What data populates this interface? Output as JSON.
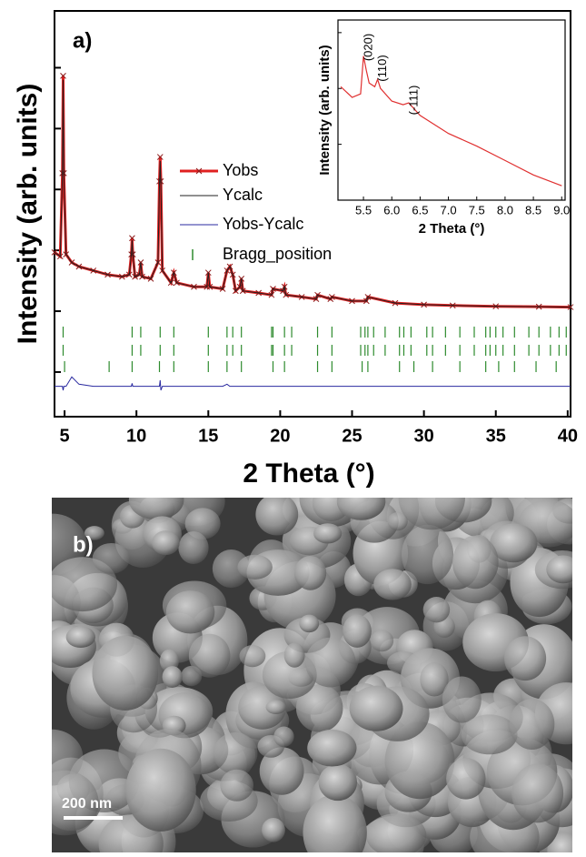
{
  "panel_a_label": "a)",
  "panel_b": {
    "label": "b)",
    "scale_bar": "200 nm"
  },
  "chart_data": [
    {
      "type": "line",
      "xlabel": "2 Theta (°)",
      "ylabel": "Intensity (arb. units)",
      "xlim": [
        4.3,
        40.2
      ],
      "ylim": [
        0,
        100
      ],
      "xticks": [
        5,
        10,
        15,
        20,
        25,
        30,
        35,
        40
      ],
      "yticks": [
        11,
        26,
        41,
        56,
        71,
        86
      ],
      "x": [
        4.3,
        4.7,
        4.85,
        4.9,
        4.95,
        5.1,
        5.5,
        6,
        7,
        8,
        9,
        9.5,
        9.65,
        9.7,
        9.75,
        9.9,
        10.2,
        10.3,
        10.4,
        11,
        11.5,
        11.6,
        11.65,
        11.7,
        11.8,
        12.4,
        12.6,
        12.8,
        14,
        14.9,
        15,
        15.1,
        16,
        16.3,
        16.5,
        16.7,
        16.9,
        17.2,
        17.3,
        17.4,
        18.5,
        19.4,
        19.5,
        20.2,
        20.3,
        20.4,
        21.5,
        22.5,
        22.6,
        23.5,
        23.6,
        25,
        26,
        26.1,
        28,
        30,
        32,
        35,
        38,
        40.2
      ],
      "series": [
        {
          "name": "Yobs",
          "color": "#e02020",
          "values": [
            40.5,
            39.5,
            60,
            84,
            60,
            40,
            38,
            37,
            36,
            35,
            34.5,
            35,
            40,
            44,
            40,
            34.5,
            35,
            38,
            34.5,
            34,
            38,
            58,
            64,
            58,
            36,
            33,
            35.5,
            33,
            32,
            32,
            35.5,
            32,
            31.5,
            36,
            37,
            35,
            31,
            32,
            34,
            31,
            30.5,
            30,
            31.5,
            31,
            32,
            30,
            29.5,
            29,
            30,
            29,
            29.5,
            28.5,
            28.5,
            29.5,
            28,
            27.6,
            27.4,
            27.2,
            27.1,
            27
          ]
        },
        {
          "name": "Ycalc",
          "color": "#222222",
          "values": [
            40.5,
            39.5,
            59,
            83,
            59,
            40,
            38,
            37,
            36,
            35,
            34.5,
            35,
            40,
            43.5,
            40,
            34.5,
            35,
            38,
            34.5,
            34,
            38,
            57,
            63,
            57,
            36,
            33,
            35.5,
            33,
            32,
            32,
            35.5,
            32,
            31.5,
            36,
            37,
            35,
            31,
            32,
            34,
            31,
            30.5,
            30,
            31.5,
            31,
            32,
            30,
            29.5,
            29,
            30,
            29,
            29.5,
            28.5,
            28.5,
            29.5,
            28,
            27.6,
            27.4,
            27.2,
            27.1,
            27
          ]
        },
        {
          "name": "Yobs-Ycalc",
          "color": "#2a2aa0",
          "values": [
            7.5,
            7.5,
            7.5,
            6.5,
            7.5,
            7.5,
            9.8,
            8,
            7.5,
            7.5,
            7.5,
            7.5,
            7.5,
            8.2,
            7.5,
            7.5,
            7.5,
            7.5,
            7.5,
            7.5,
            7.5,
            7.5,
            9,
            6.5,
            7.5,
            7.5,
            7.5,
            7.5,
            7.5,
            7.5,
            7.5,
            7.5,
            7.5,
            8,
            7.5,
            7.5,
            7.5,
            7.5,
            7.5,
            7.5,
            7.5,
            7.5,
            7.5,
            7.5,
            7.5,
            7.5,
            7.5,
            7.5,
            7.5,
            7.5,
            7.5,
            7.5,
            7.5,
            7.5,
            7.5,
            7.5,
            7.5,
            7.5,
            7.5,
            7.5
          ]
        }
      ],
      "bragg": {
        "name": "Bragg_position",
        "color": "#2e8b2e",
        "rows": [
          [
            4.9,
            9.7,
            10.3,
            11.65,
            12.6,
            15,
            16.3,
            16.7,
            17.3,
            19.4,
            19.5,
            20.3,
            20.8,
            22.6,
            23.6,
            25.6,
            25.9,
            26.1,
            26.5,
            27.3,
            28.3,
            28.6,
            29.1,
            30.2,
            30.6,
            31.5,
            32.5,
            33.5,
            34.3,
            34.6,
            35,
            35.5,
            36.3,
            37.3,
            38,
            38.8,
            39.4,
            39.9
          ],
          [
            4.9,
            9.7,
            10.3,
            11.65,
            12.6,
            15,
            16.3,
            16.7,
            17.3,
            19.4,
            19.5,
            20.3,
            20.8,
            22.6,
            23.6,
            25.6,
            25.9,
            26.1,
            26.5,
            27.3,
            28.3,
            28.6,
            29.1,
            30.2,
            30.6,
            31.5,
            32.5,
            33.5,
            34.3,
            34.6,
            35,
            35.5,
            36.3,
            37.3,
            38,
            38.8,
            39.4,
            39.9
          ],
          [
            5.0,
            8.1,
            9.7,
            11.6,
            12.6,
            15,
            16.3,
            17.3,
            19.5,
            20.3,
            22.6,
            23.6,
            25.7,
            26.1,
            28.3,
            29.3,
            30.6,
            32.5,
            34.3,
            35.2,
            36.3,
            37.8,
            39.2
          ]
        ]
      }
    },
    {
      "type": "line",
      "xlabel": "2 Theta (°)",
      "ylabel": "Intensity (arb. units)",
      "xlim": [
        5.05,
        9.06
      ],
      "ylim": [
        0,
        100
      ],
      "xticks": [
        5.5,
        {
          "value": 6,
          "label": "6.0"
        },
        6.5,
        {
          "value": 7,
          "label": "7.0"
        },
        7.5,
        {
          "value": 8,
          "label": "8.0"
        },
        8.5,
        {
          "value": 9,
          "label": "9.0"
        }
      ],
      "yticks": [
        31,
        62,
        93
      ],
      "x": [
        5.1,
        5.3,
        5.45,
        5.5,
        5.55,
        5.6,
        5.7,
        5.75,
        5.8,
        6.0,
        6.2,
        6.3,
        6.5,
        7.0,
        7.5,
        8.0,
        8.5,
        9.0
      ],
      "series": [
        {
          "name": "Yobs",
          "color": "#e03030",
          "values": [
            63,
            57,
            59,
            80,
            72,
            65,
            63,
            67,
            62,
            55,
            53,
            54,
            47,
            37,
            30,
            22,
            14,
            8
          ]
        }
      ],
      "annotations": [
        {
          "text": "(020)",
          "x": 5.5
        },
        {
          "text": "(110)",
          "x": 5.75
        },
        {
          "text": "(-111)",
          "x": 6.3
        }
      ]
    }
  ]
}
